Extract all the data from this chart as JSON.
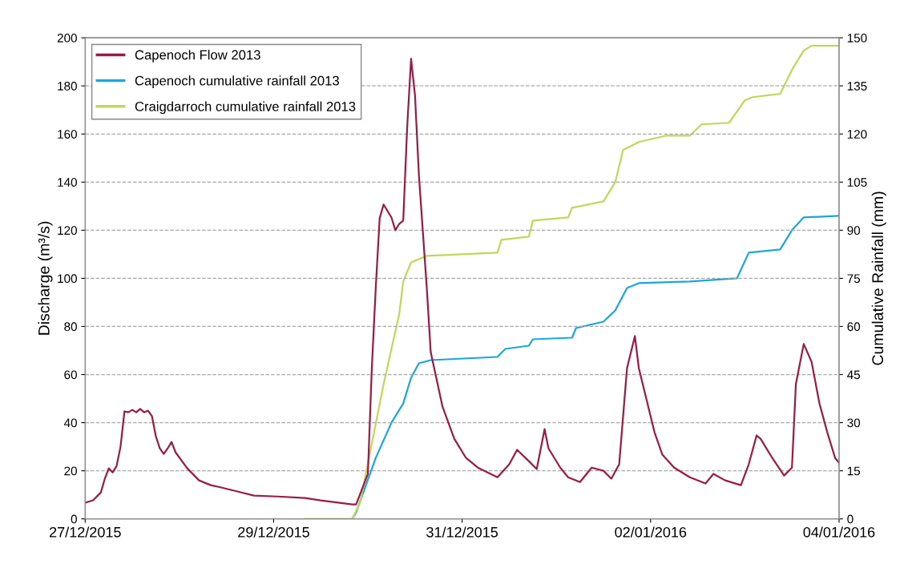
{
  "chart_data": {
    "type": "line",
    "ylabel": "Discharge (m³/s)",
    "y2label": "Cumulative Rainfall (mm)",
    "xlim": [
      "2015-12-27T00:00",
      "2016-01-04T00:00"
    ],
    "xticks": [
      {
        "value": "2015-12-27T00:00",
        "label": "27/12/2015"
      },
      {
        "value": "2015-12-29T00:00",
        "label": "29/12/2015"
      },
      {
        "value": "2015-12-31T00:00",
        "label": "31/12/2015"
      },
      {
        "value": "2016-01-02T00:00",
        "label": "02/01/2016"
      },
      {
        "value": "2016-01-04T00:00",
        "label": "04/01/2016"
      }
    ],
    "ylim": [
      0,
      200
    ],
    "yticks": [
      0,
      20,
      40,
      60,
      80,
      100,
      120,
      140,
      160,
      180,
      200
    ],
    "y2lim": [
      0,
      150
    ],
    "y2ticks": [
      0,
      15,
      30,
      45,
      60,
      75,
      90,
      105,
      120,
      135,
      150
    ],
    "grid": "y",
    "legend": "top left",
    "marker": "none",
    "line_style": "solid",
    "series": [
      {
        "name": "Capenoch Flow 2013",
        "color": "#9b1b47",
        "x": [
          "2015-12-27T00:00",
          "2015-12-27T02:00",
          "2015-12-27T04:00",
          "2015-12-27T05:00",
          "2015-12-27T06:00",
          "2015-12-27T07:00",
          "2015-12-27T08:00",
          "2015-12-27T09:00",
          "2015-12-27T10:00",
          "2015-12-27T11:00",
          "2015-12-27T12:00",
          "2015-12-27T13:00",
          "2015-12-27T14:00",
          "2015-12-27T15:00",
          "2015-12-27T16:00",
          "2015-12-27T17:00",
          "2015-12-27T18:00",
          "2015-12-27T19:00",
          "2015-12-27T20:00",
          "2015-12-27T21:00",
          "2015-12-27T22:00",
          "2015-12-27T23:00",
          "2015-12-28T02:00",
          "2015-12-28T05:00",
          "2015-12-28T08:00",
          "2015-12-28T10:00",
          "2015-12-28T15:00",
          "2015-12-28T19:00",
          "2015-12-29T01:00",
          "2015-12-29T08:00",
          "2015-12-29T12:00",
          "2015-12-29T20:00",
          "2015-12-29T21:00",
          "2015-12-30T00:00",
          "2015-12-30T01:00",
          "2015-12-30T02:00",
          "2015-12-30T03:00",
          "2015-12-30T04:00",
          "2015-12-30T06:00",
          "2015-12-30T07:00",
          "2015-12-30T08:00",
          "2015-12-30T09:00",
          "2015-12-30T10:00",
          "2015-12-30T11:00",
          "2015-12-30T12:00",
          "2015-12-30T13:00",
          "2015-12-30T15:00",
          "2015-12-30T16:00",
          "2015-12-30T19:00",
          "2015-12-30T22:00",
          "2015-12-31T01:00",
          "2015-12-31T04:00",
          "2015-12-31T09:00",
          "2015-12-31T12:00",
          "2015-12-31T14:00",
          "2015-12-31T17:00",
          "2015-12-31T19:00",
          "2015-12-31T21:00",
          "2015-12-31T22:00",
          "2016-01-01T01:00",
          "2016-01-01T03:00",
          "2016-01-01T06:00",
          "2016-01-01T09:00",
          "2016-01-01T12:00",
          "2016-01-01T14:00",
          "2016-01-01T16:00",
          "2016-01-01T18:00",
          "2016-01-01T20:00",
          "2016-01-01T21:00",
          "2016-01-02T01:00",
          "2016-01-02T03:00",
          "2016-01-02T06:00",
          "2016-01-02T10:00",
          "2016-01-02T14:00",
          "2016-01-02T16:00",
          "2016-01-02T19:00",
          "2016-01-02T23:00",
          "2016-01-03T01:00",
          "2016-01-03T03:00",
          "2016-01-03T04:00",
          "2016-01-03T07:00",
          "2016-01-03T10:00",
          "2016-01-03T12:00",
          "2016-01-03T13:00",
          "2016-01-03T15:00",
          "2016-01-03T17:00",
          "2016-01-03T19:00",
          "2016-01-03T21:00",
          "2016-01-03T23:00",
          "2016-01-04T00:00"
        ],
        "values": [
          6.7,
          7.7,
          11,
          16.7,
          21,
          19.3,
          22,
          30,
          44.7,
          44.3,
          45.3,
          44.3,
          45.7,
          44.3,
          45,
          42.7,
          34.3,
          29.3,
          27,
          29.3,
          32,
          27.7,
          21,
          16,
          14,
          13.3,
          11.3,
          9.7,
          9.3,
          8.7,
          7.7,
          6,
          6,
          18.7,
          62.7,
          96,
          125,
          130.7,
          125.3,
          120,
          122.7,
          124,
          162.7,
          191.3,
          176,
          142.7,
          96,
          69.3,
          46.7,
          33.3,
          25.3,
          21.3,
          17.3,
          22.7,
          28.7,
          24,
          20.7,
          37.3,
          29.3,
          21.3,
          17.3,
          15.3,
          21.3,
          20,
          16.7,
          22.7,
          62.7,
          76,
          62.7,
          36,
          26.7,
          21.3,
          17.3,
          14.7,
          18.7,
          16,
          14,
          22.7,
          34.7,
          33.3,
          25.3,
          18,
          21.3,
          56,
          72.7,
          65.3,
          48,
          36,
          25.3,
          23.3
        ]
      },
      {
        "name": "Capenoch cumulative rainfall 2013",
        "color": "#1ba6dc",
        "axis": "y2",
        "x": [
          "2015-12-29T20:00",
          "2015-12-29T21:00",
          "2015-12-30T02:00",
          "2015-12-30T06:00",
          "2015-12-30T09:00",
          "2015-12-30T11:00",
          "2015-12-30T13:00",
          "2015-12-30T16:00",
          "2015-12-31T09:00",
          "2015-12-31T11:00",
          "2015-12-31T17:00",
          "2015-12-31T18:00",
          "2016-01-01T04:00",
          "2016-01-01T05:00",
          "2016-01-01T12:00",
          "2016-01-01T15:00",
          "2016-01-01T18:00",
          "2016-01-01T21:00",
          "2016-01-02T10:00",
          "2016-01-02T22:00",
          "2016-01-03T01:00",
          "2016-01-03T09:00",
          "2016-01-03T12:00",
          "2016-01-03T15:00",
          "2016-01-04T00:00"
        ],
        "values": [
          0,
          2,
          19,
          30,
          36,
          44,
          48.5,
          49.5,
          50.5,
          53,
          54,
          56,
          56.5,
          59.5,
          61.5,
          65,
          72,
          73.5,
          74,
          75,
          83,
          84,
          90,
          94,
          94.5
        ]
      },
      {
        "name": "Craigdarroch cumulative rainfall 2013",
        "color": "#c4d65a",
        "axis": "y2",
        "x": [
          "2015-12-29T08:00",
          "2015-12-29T20:00",
          "2015-12-29T22:00",
          "2015-12-30T04:00",
          "2015-12-30T08:00",
          "2015-12-30T09:00",
          "2015-12-30T11:00",
          "2015-12-30T15:00",
          "2015-12-31T09:00",
          "2015-12-31T10:00",
          "2015-12-31T17:00",
          "2015-12-31T18:00",
          "2016-01-01T03:00",
          "2016-01-01T04:00",
          "2016-01-01T12:00",
          "2016-01-01T15:00",
          "2016-01-01T17:00",
          "2016-01-01T21:00",
          "2016-01-02T04:00",
          "2016-01-02T10:00",
          "2016-01-02T13:00",
          "2016-01-02T20:00",
          "2016-01-03T00:00",
          "2016-01-03T02:00",
          "2016-01-03T09:00",
          "2016-01-03T12:00",
          "2016-01-03T15:00",
          "2016-01-03T17:00",
          "2016-01-04T00:00"
        ],
        "values": [
          0,
          0,
          5,
          42,
          64,
          74,
          80,
          82,
          83,
          87,
          88,
          93,
          94,
          97,
          99,
          105,
          115,
          117.5,
          119.5,
          119.5,
          123,
          123.5,
          130.5,
          131.5,
          132.5,
          140,
          146,
          147.5,
          147.5
        ]
      }
    ]
  }
}
